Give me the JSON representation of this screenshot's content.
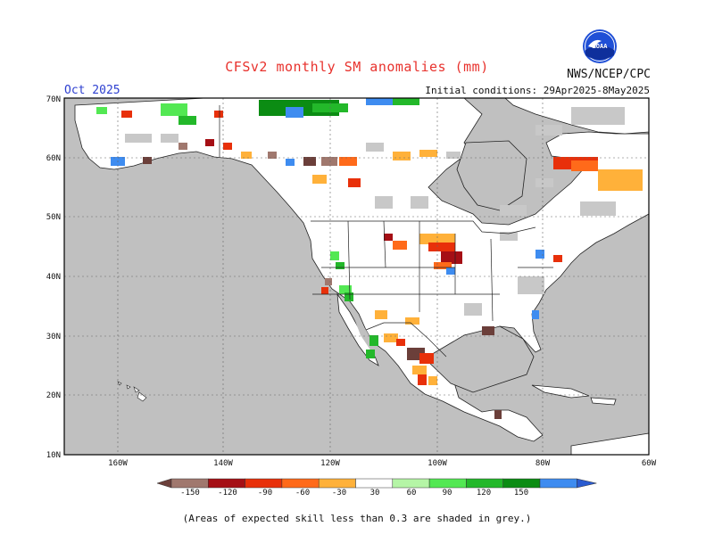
{
  "title": "CFSv2 monthly SM anomalies (mm)",
  "valid_month": "Oct 2025",
  "agency": "NWS/NCEP/CPC",
  "initial_conditions": "Initial conditions: 29Apr2025-8May2025",
  "logo_text": "NOAA",
  "footnote": "(Areas of expected skill less than 0.3 are shaded in grey.)",
  "map": {
    "lat_labels": [
      "70N",
      "60N",
      "50N",
      "40N",
      "30N",
      "20N",
      "10N"
    ],
    "lon_labels": [
      "160W",
      "140W",
      "120W",
      "100W",
      "80W",
      "60W"
    ]
  },
  "legend": {
    "ticks": [
      "-150",
      "-120",
      "-90",
      "-60",
      "-30",
      "30",
      "60",
      "90",
      "120",
      "150"
    ],
    "colors": [
      "#6b3f3a",
      "#a0786e",
      "#a50f15",
      "#e8300a",
      "#ff6a1a",
      "#ffb13a",
      "#ffffff",
      "#b5f5a6",
      "#53e853",
      "#23b82a",
      "#0b8c13",
      "#3e8cf0",
      "#2a5bd0"
    ],
    "skill_shading": "#c8c8c8",
    "land_color": "#ffffff",
    "ocean_color": "#c0c0c0"
  }
}
